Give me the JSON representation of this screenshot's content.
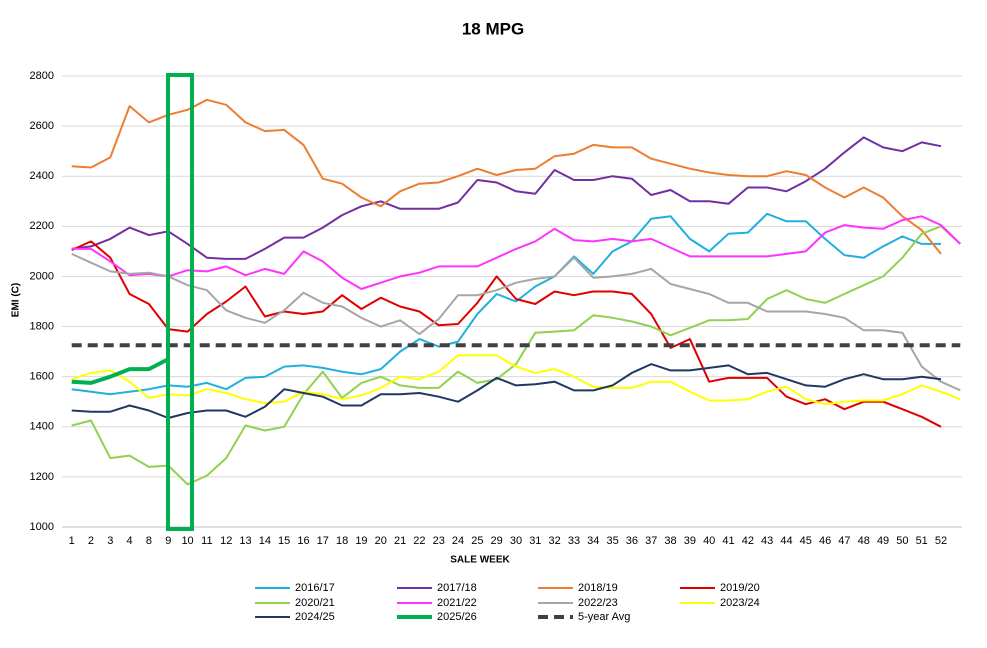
{
  "chart_data": {
    "type": "line",
    "title": "18 MPG",
    "x_label": "SALE WEEK",
    "y_label": "EMI (C)",
    "categories": [
      "1",
      "2",
      "3",
      "4",
      "8",
      "9",
      "10",
      "11",
      "12",
      "13",
      "14",
      "15",
      "16",
      "17",
      "18",
      "19",
      "20",
      "21",
      "22",
      "23",
      "24",
      "25",
      "29",
      "30",
      "31",
      "32",
      "33",
      "34",
      "35",
      "36",
      "37",
      "38",
      "39",
      "40",
      "41",
      "42",
      "43",
      "44",
      "45",
      "46",
      "47",
      "48",
      "49",
      "50",
      "51",
      "52",
      null
    ],
    "ylim": [
      1000,
      2800
    ],
    "yticks": [
      1000,
      1200,
      1400,
      1600,
      1800,
      2000,
      2200,
      2400,
      2600,
      2800
    ],
    "grid": true,
    "legend": "bottom",
    "series": [
      {
        "name": "2016/17",
        "color": "#1fb0e0",
        "values": [
          1550,
          1540,
          1530,
          1540,
          1550,
          1565,
          1560,
          1575,
          1550,
          1595,
          1600,
          1640,
          1645,
          1635,
          1620,
          1610,
          1630,
          1700,
          1750,
          1720,
          1740,
          1850,
          1930,
          1900,
          1960,
          2000,
          2080,
          2010,
          2100,
          2140,
          2230,
          2240,
          2150,
          2100,
          2170,
          2175,
          2250,
          2220,
          2220,
          2150,
          2085,
          2075,
          2120,
          2160,
          2130,
          2130,
          null
        ]
      },
      {
        "name": "2017/18",
        "color": "#7030a0",
        "values": [
          2110,
          2120,
          2150,
          2195,
          2165,
          2180,
          2130,
          2075,
          2070,
          2070,
          2110,
          2155,
          2155,
          2195,
          2245,
          2280,
          2300,
          2270,
          2270,
          2270,
          2295,
          2385,
          2375,
          2340,
          2330,
          2425,
          2385,
          2385,
          2400,
          2390,
          2325,
          2345,
          2300,
          2300,
          2290,
          2355,
          2355,
          2340,
          2380,
          2430,
          2495,
          2555,
          2515,
          2500,
          2535,
          2520,
          null
        ]
      },
      {
        "name": "2018/19",
        "color": "#ed7d31",
        "values": [
          2440,
          2435,
          2475,
          2680,
          2615,
          2645,
          2665,
          2705,
          2685,
          2615,
          2580,
          2585,
          2525,
          2390,
          2370,
          2315,
          2280,
          2340,
          2370,
          2375,
          2400,
          2430,
          2405,
          2425,
          2430,
          2480,
          2490,
          2525,
          2515,
          2515,
          2470,
          2450,
          2430,
          2415,
          2405,
          2400,
          2400,
          2420,
          2405,
          2355,
          2315,
          2355,
          2315,
          2240,
          2185,
          2090,
          null
        ]
      },
      {
        "name": "2019/20",
        "color": "#e00000",
        "values": [
          2105,
          2140,
          2075,
          1930,
          1890,
          1790,
          1780,
          1850,
          1900,
          1960,
          1840,
          1860,
          1850,
          1860,
          1925,
          1870,
          1915,
          1880,
          1860,
          1805,
          1810,
          1895,
          2000,
          1910,
          1890,
          1940,
          1925,
          1940,
          1940,
          1930,
          1850,
          1715,
          1750,
          1580,
          1595,
          1595,
          1595,
          1520,
          1490,
          1510,
          1470,
          1500,
          1500,
          1470,
          1440,
          1400,
          null
        ]
      },
      {
        "name": "2020/21",
        "color": "#92d050",
        "values": [
          1405,
          1425,
          1275,
          1285,
          1240,
          1245,
          1170,
          1205,
          1275,
          1405,
          1385,
          1400,
          1530,
          1620,
          1515,
          1575,
          1600,
          1565,
          1555,
          1555,
          1620,
          1575,
          1590,
          1650,
          1775,
          1780,
          1785,
          1845,
          1835,
          1820,
          1800,
          1765,
          1795,
          1825,
          1825,
          1830,
          1910,
          1945,
          1910,
          1895,
          1930,
          1965,
          2000,
          2075,
          2170,
          2200,
          2130
        ]
      },
      {
        "name": "2021/22",
        "color": "#ff33ff",
        "values": [
          2110,
          2110,
          2060,
          2005,
          2010,
          2000,
          2025,
          2020,
          2040,
          2005,
          2030,
          2010,
          2100,
          2060,
          1995,
          1950,
          1975,
          2000,
          2015,
          2040,
          2040,
          2040,
          2075,
          2110,
          2140,
          2190,
          2145,
          2140,
          2150,
          2140,
          2150,
          2115,
          2080,
          2080,
          2080,
          2080,
          2080,
          2090,
          2100,
          2175,
          2205,
          2195,
          2190,
          2225,
          2240,
          2205,
          2130
        ]
      },
      {
        "name": "2022/23",
        "color": "#a6a6a6",
        "values": [
          2090,
          2055,
          2020,
          2010,
          2015,
          2000,
          1965,
          1945,
          1865,
          1835,
          1815,
          1865,
          1935,
          1895,
          1880,
          1835,
          1800,
          1825,
          1770,
          1830,
          1925,
          1925,
          1945,
          1975,
          1990,
          2000,
          2075,
          1995,
          2000,
          2010,
          2030,
          1970,
          1950,
          1930,
          1895,
          1895,
          1860,
          1860,
          1860,
          1850,
          1835,
          1785,
          1785,
          1775,
          1640,
          1580,
          1545
        ]
      },
      {
        "name": "2023/24",
        "color": "#ffff00",
        "values": [
          1590,
          1615,
          1625,
          1580,
          1515,
          1530,
          1525,
          1550,
          1535,
          1510,
          1495,
          1500,
          1540,
          1530,
          1510,
          1525,
          1555,
          1600,
          1590,
          1620,
          1685,
          1685,
          1685,
          1640,
          1615,
          1630,
          1600,
          1560,
          1555,
          1555,
          1580,
          1580,
          1540,
          1505,
          1505,
          1510,
          1540,
          1560,
          1510,
          1490,
          1500,
          1505,
          1505,
          1530,
          1565,
          1540,
          1510
        ]
      },
      {
        "name": "2024/25",
        "color": "#203864",
        "values": [
          1465,
          1460,
          1460,
          1485,
          1465,
          1435,
          1455,
          1465,
          1465,
          1440,
          1480,
          1550,
          1535,
          1520,
          1485,
          1485,
          1530,
          1530,
          1535,
          1520,
          1500,
          1545,
          1595,
          1565,
          1570,
          1580,
          1545,
          1545,
          1565,
          1615,
          1650,
          1625,
          1625,
          1635,
          1645,
          1610,
          1615,
          1590,
          1565,
          1560,
          1590,
          1610,
          1590,
          1590,
          1600,
          1590,
          null
        ]
      },
      {
        "name": "2025/26",
        "color": "#00b050",
        "width": 4,
        "values": [
          1580,
          1575,
          1600,
          1630,
          1630,
          1670,
          null,
          null,
          null,
          null,
          null,
          null,
          null,
          null,
          null,
          null,
          null,
          null,
          null,
          null,
          null,
          null,
          null,
          null,
          null,
          null,
          null,
          null,
          null,
          null,
          null,
          null,
          null,
          null,
          null,
          null,
          null,
          null,
          null,
          null,
          null,
          null,
          null,
          null,
          null,
          null,
          null
        ]
      },
      {
        "name": "5-year Avg",
        "color": "#404040",
        "width": 4,
        "dash": true,
        "values": [
          1725,
          1725,
          1725,
          1725,
          1725,
          1725,
          1725,
          1725,
          1725,
          1725,
          1725,
          1725,
          1725,
          1725,
          1725,
          1725,
          1725,
          1725,
          1725,
          1725,
          1725,
          1725,
          1725,
          1725,
          1725,
          1725,
          1725,
          1725,
          1725,
          1725,
          1725,
          1725,
          1725,
          1725,
          1725,
          1725,
          1725,
          1725,
          1725,
          1725,
          1725,
          1725,
          1725,
          1725,
          1725,
          1725,
          1725
        ]
      }
    ]
  }
}
